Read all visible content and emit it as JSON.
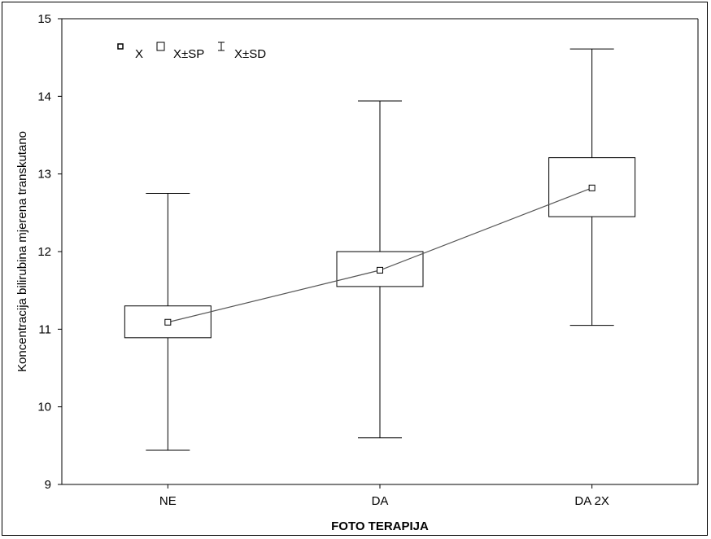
{
  "chart_data": {
    "type": "box",
    "title": "",
    "xlabel": "FOTO TERAPIJA",
    "ylabel": "Koncentracija bilirubina mjerena transkutano",
    "ylim": [
      9,
      15
    ],
    "yticks": [
      9,
      10,
      11,
      12,
      13,
      14,
      15
    ],
    "categories": [
      "NE",
      "DA",
      "DA 2X"
    ],
    "mean": [
      11.09,
      11.76,
      12.82
    ],
    "se_low": [
      10.89,
      11.55,
      12.45
    ],
    "se_high": [
      11.3,
      12.0,
      13.21
    ],
    "sd_low": [
      9.44,
      9.6,
      11.05
    ],
    "sd_high": [
      12.75,
      13.94,
      14.61
    ],
    "connect_means": true,
    "grid": false,
    "legend_position": "top-left",
    "legend": [
      {
        "symbol": "mean-point",
        "label": "X"
      },
      {
        "symbol": "box",
        "label": "X±SP"
      },
      {
        "symbol": "whisker",
        "label": "X±SD"
      }
    ]
  }
}
